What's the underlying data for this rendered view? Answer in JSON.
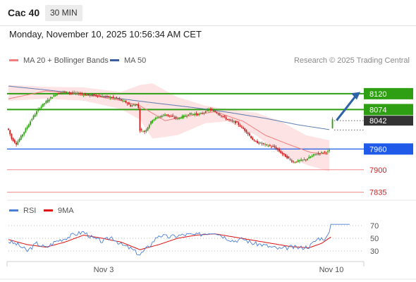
{
  "header": {
    "instrument": "Cac 40",
    "timeframe": "30 MIN",
    "datetime": "Monday, November 10, 2025 10:56:34 AM CET"
  },
  "legend": {
    "ma20_label": "MA 20 + Bollinger Bands",
    "ma50_label": "MA 50",
    "credit": "Research © 2025 Trading Central",
    "rsi_label": "RSI",
    "rsi_ma_label": "9MA"
  },
  "colors": {
    "ma20": "#f08080",
    "ma50": "#3a5fa0",
    "bollinger_fill": "#fde3e3",
    "resistance": "#2e9e12",
    "pivot": "#1f5be8",
    "support": "#f08a8a",
    "candle_up": "#2e9e12",
    "candle_down": "#cc1c1c",
    "arrow": "#2b62a8",
    "rsi": "#4a7fd6",
    "rsi_ma": "#dd1111",
    "last_price_bg": "#333333"
  },
  "chart_data": [
    {
      "type": "candlestick",
      "y_range": [
        7820,
        8185
      ],
      "x_labels": [
        "Nov 3",
        "Nov 10"
      ],
      "grid": false,
      "levels": [
        {
          "label": "8120",
          "value": 8120,
          "kind": "resistance"
        },
        {
          "label": "8074",
          "value": 8074,
          "kind": "resistance"
        },
        {
          "label": "8042",
          "value": 8042,
          "kind": "last"
        },
        {
          "label": "7960",
          "value": 7960,
          "kind": "pivot"
        },
        {
          "label": "7900",
          "value": 7900,
          "kind": "support"
        },
        {
          "label": "7835",
          "value": 7835,
          "kind": "support"
        }
      ],
      "forecast": {
        "from": 8045,
        "to": 8125,
        "direction": "up"
      },
      "candle_anchors": [
        [
          0,
          8015
        ],
        [
          2,
          7990
        ],
        [
          5,
          7975
        ],
        [
          10,
          8010
        ],
        [
          16,
          8055
        ],
        [
          20,
          8080
        ],
        [
          26,
          8105
        ],
        [
          30,
          8118
        ],
        [
          35,
          8125
        ],
        [
          40,
          8122
        ],
        [
          45,
          8120
        ],
        [
          50,
          8116
        ],
        [
          56,
          8116
        ],
        [
          60,
          8112
        ],
        [
          65,
          8110
        ],
        [
          70,
          8105
        ],
        [
          75,
          8095
        ],
        [
          78,
          8085
        ],
        [
          82,
          8090
        ],
        [
          83,
          8078
        ],
        [
          84,
          8015
        ],
        [
          87,
          8010
        ],
        [
          92,
          8045
        ],
        [
          100,
          8060
        ],
        [
          108,
          8048
        ],
        [
          116,
          8062
        ],
        [
          122,
          8060
        ],
        [
          126,
          8068
        ],
        [
          128,
          8075
        ],
        [
          131,
          8070
        ],
        [
          134,
          8062
        ],
        [
          140,
          8045
        ],
        [
          146,
          8035
        ],
        [
          152,
          8010
        ],
        [
          157,
          7982
        ],
        [
          164,
          7972
        ],
        [
          170,
          7965
        ],
        [
          176,
          7942
        ],
        [
          182,
          7922
        ],
        [
          190,
          7930
        ],
        [
          196,
          7945
        ],
        [
          201,
          7950
        ],
        [
          204,
          7952
        ],
        [
          205,
          7955
        ],
        [
          207,
          8045
        ]
      ],
      "ma20_anchors": [
        [
          0,
          8105
        ],
        [
          24,
          8128
        ],
        [
          48,
          8118
        ],
        [
          72,
          8100
        ],
        [
          84,
          8085
        ],
        [
          100,
          8042
        ],
        [
          118,
          8058
        ],
        [
          132,
          8068
        ],
        [
          150,
          8040
        ],
        [
          164,
          8000
        ],
        [
          178,
          7975
        ],
        [
          193,
          7950
        ],
        [
          204,
          7945
        ]
      ],
      "ma50_anchors": [
        [
          0,
          8142
        ],
        [
          30,
          8128
        ],
        [
          60,
          8112
        ],
        [
          90,
          8095
        ],
        [
          118,
          8080
        ],
        [
          142,
          8065
        ],
        [
          165,
          8048
        ],
        [
          185,
          8030
        ],
        [
          205,
          8016
        ]
      ],
      "bollinger_upper": [
        [
          0,
          8145
        ],
        [
          24,
          8140
        ],
        [
          48,
          8138
        ],
        [
          72,
          8125
        ],
        [
          84,
          8145
        ],
        [
          92,
          8150
        ],
        [
          108,
          8110
        ],
        [
          126,
          8085
        ],
        [
          140,
          8075
        ],
        [
          158,
          8065
        ],
        [
          174,
          8040
        ],
        [
          190,
          8000
        ],
        [
          205,
          7985
        ]
      ],
      "bollinger_lower": [
        [
          0,
          8100
        ],
        [
          24,
          8105
        ],
        [
          48,
          8100
        ],
        [
          72,
          8075
        ],
        [
          84,
          8045
        ],
        [
          92,
          7990
        ],
        [
          108,
          8000
        ],
        [
          126,
          8035
        ],
        [
          140,
          8040
        ],
        [
          158,
          8000
        ],
        [
          174,
          7945
        ],
        [
          190,
          7915
        ],
        [
          205,
          7895
        ]
      ]
    },
    {
      "type": "line",
      "y_ticks": [
        70,
        50,
        30
      ],
      "x_labels": [
        "Nov 3",
        "Nov 10"
      ],
      "series": [
        {
          "name": "RSI",
          "anchors": [
            [
              0,
              45
            ],
            [
              6,
              40
            ],
            [
              12,
              30
            ],
            [
              18,
              42
            ],
            [
              24,
              35
            ],
            [
              30,
              45
            ],
            [
              36,
              50
            ],
            [
              42,
              56
            ],
            [
              48,
              60
            ],
            [
              54,
              50
            ],
            [
              60,
              45
            ],
            [
              66,
              52
            ],
            [
              72,
              40
            ],
            [
              78,
              34
            ],
            [
              84,
              24
            ],
            [
              90,
              38
            ],
            [
              96,
              55
            ],
            [
              102,
              52
            ],
            [
              108,
              54
            ],
            [
              114,
              56
            ],
            [
              120,
              55
            ],
            [
              126,
              58
            ],
            [
              132,
              60
            ],
            [
              138,
              52
            ],
            [
              144,
              46
            ],
            [
              150,
              49
            ],
            [
              156,
              42
            ],
            [
              162,
              40
            ],
            [
              168,
              36
            ],
            [
              174,
              33
            ],
            [
              180,
              36
            ],
            [
              186,
              35
            ],
            [
              192,
              37
            ],
            [
              198,
              50
            ],
            [
              203,
              50
            ],
            [
              205,
              60
            ],
            [
              206,
              72
            ],
            [
              218,
              72
            ]
          ]
        },
        {
          "name": "9MA",
          "anchors": [
            [
              0,
              48
            ],
            [
              12,
              40
            ],
            [
              24,
              36
            ],
            [
              36,
              44
            ],
            [
              48,
              55
            ],
            [
              60,
              50
            ],
            [
              72,
              44
            ],
            [
              84,
              32
            ],
            [
              96,
              40
            ],
            [
              108,
              50
            ],
            [
              120,
              55
            ],
            [
              132,
              57
            ],
            [
              144,
              52
            ],
            [
              156,
              47
            ],
            [
              168,
              42
            ],
            [
              180,
              37
            ],
            [
              192,
              35
            ],
            [
              200,
              42
            ],
            [
              206,
              52
            ]
          ]
        }
      ]
    }
  ]
}
